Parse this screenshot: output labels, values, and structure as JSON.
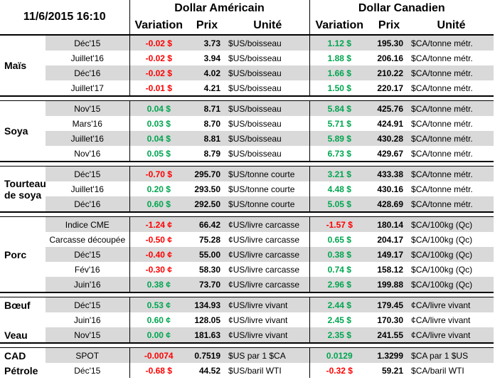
{
  "header": {
    "datetime": "11/6/2015 16:10",
    "usd_title": "Dollar Américain",
    "cad_title": "Dollar Canadien",
    "col_variation": "Variation",
    "col_prix": "Prix",
    "col_unite": "Unité"
  },
  "colors": {
    "negative": "#ff0000",
    "positive": "#00a650",
    "row_shade": "#d9d9d9"
  },
  "groups": [
    {
      "labels": [
        "Maïs"
      ],
      "rows": [
        [
          "Déc'15",
          "-0.02 $",
          "3.73",
          "$US/boisseau",
          "1.12 $",
          "195.30",
          "$CA/tonne métr."
        ],
        [
          "Juillet'16",
          "-0.02 $",
          "3.94",
          "$US/boisseau",
          "1.88 $",
          "206.16",
          "$CA/tonne métr."
        ],
        [
          "Déc'16",
          "-0.02 $",
          "4.02",
          "$US/boisseau",
          "1.66 $",
          "210.22",
          "$CA/tonne métr."
        ],
        [
          "Juillet'17",
          "-0.01 $",
          "4.21",
          "$US/boisseau",
          "1.50 $",
          "220.17",
          "$CA/tonne métr."
        ]
      ]
    },
    {
      "labels": [
        "Soya"
      ],
      "rows": [
        [
          "Nov'15",
          "0.04 $",
          "8.71",
          "$US/boisseau",
          "5.84 $",
          "425.76",
          "$CA/tonne métr."
        ],
        [
          "Mars'16",
          "0.03 $",
          "8.70",
          "$US/boisseau",
          "5.71 $",
          "424.91",
          "$CA/tonne métr."
        ],
        [
          "Juillet'16",
          "0.04 $",
          "8.81",
          "$US/boisseau",
          "5.89 $",
          "430.28",
          "$CA/tonne métr."
        ],
        [
          "Nov'16",
          "0.05 $",
          "8.79",
          "$US/boisseau",
          "6.73 $",
          "429.67",
          "$CA/tonne métr."
        ]
      ]
    },
    {
      "labels": [
        "Tourteau",
        "de soya"
      ],
      "rows": [
        [
          "Déc'15",
          "-0.70 $",
          "295.70",
          "$US/tonne courte",
          "3.21 $",
          "433.38",
          "$CA/tonne métr."
        ],
        [
          "Juillet'16",
          "0.20 $",
          "293.50",
          "$US/tonne courte",
          "4.48 $",
          "430.16",
          "$CA/tonne métr."
        ],
        [
          "Déc'16",
          "0.60 $",
          "292.50",
          "$US/tonne courte",
          "5.05 $",
          "428.69",
          "$CA/tonne métr."
        ]
      ]
    },
    {
      "labels": [
        "Porc"
      ],
      "rows": [
        [
          "Indice CME",
          "-1.24 ¢",
          "66.42",
          "¢US/livre carcasse",
          "-1.57 $",
          "180.14",
          "$CA/100kg (Qc)"
        ],
        [
          "Carcasse découpée",
          "-0.50 ¢",
          "75.28",
          "¢US/livre carcasse",
          "0.65 $",
          "204.17",
          "$CA/100kg (Qc)"
        ],
        [
          "Déc'15",
          "-0.40 ¢",
          "55.00",
          "¢US/livre carcasse",
          "0.38 $",
          "149.17",
          "$CA/100kg (Qc)"
        ],
        [
          "Fév'16",
          "-0.30 ¢",
          "58.30",
          "¢US/livre carcasse",
          "0.74 $",
          "158.12",
          "$CA/100kg (Qc)"
        ],
        [
          "Juin'16",
          "0.38 ¢",
          "73.70",
          "¢US/livre carcasse",
          "2.96 $",
          "199.88",
          "$CA/100kg (Qc)"
        ]
      ]
    },
    {
      "labels": [
        "Bœuf",
        "",
        "Veau"
      ],
      "perrow": true,
      "rows": [
        [
          "Déc'15",
          "0.53 ¢",
          "134.93",
          "¢US/livre vivant",
          "2.44 $",
          "179.45",
          "¢CA/livre vivant"
        ],
        [
          "Juin'16",
          "0.60 ¢",
          "128.05",
          "¢US/livre vivant",
          "2.45 $",
          "170.30",
          "¢CA/livre vivant"
        ],
        [
          "Nov'15",
          "0.00 ¢",
          "181.63",
          "¢US/livre vivant",
          "2.35 $",
          "241.55",
          "¢CA/livre vivant"
        ]
      ]
    },
    {
      "labels": [
        "CAD",
        "Pétrole"
      ],
      "perrow": true,
      "rows": [
        [
          "SPOT",
          "-0.0074",
          "0.7519",
          "$US par 1 $CA",
          "0.0129",
          "1.3299",
          "$CA par 1 $US"
        ],
        [
          "Déc'15",
          "-0.68 $",
          "44.52",
          "$US/baril WTI",
          "-0.32 $",
          "59.21",
          "$CA/baril WTI"
        ]
      ]
    }
  ]
}
